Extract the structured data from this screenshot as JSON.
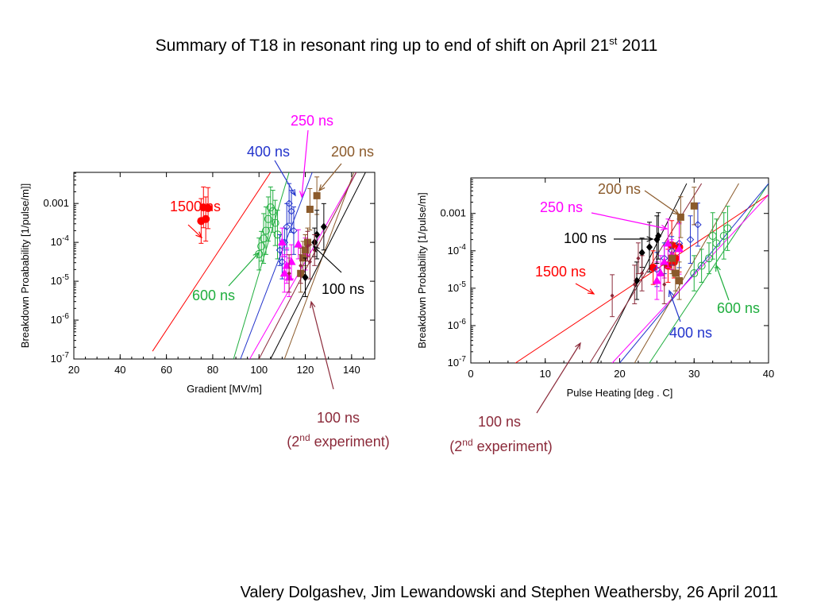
{
  "title": {
    "main": "Summary of T18 in resonant ring up to end of shift on April 21",
    "sup": "st",
    "year": " 2011"
  },
  "footer": "Valery Dolgashev,  Jim Lewandowski and Stephen Weathersby, 26 April 2011",
  "colors": {
    "1500 ns": "#ff0000",
    "600 ns": "#1fae3e",
    "400 ns": "#2233cc",
    "250 ns": "#ff00ff",
    "200 ns": "#8b5a2b",
    "100 ns": "#000000",
    "100 ns (2nd)": "#8b2a3a"
  },
  "chart_data": [
    {
      "type": "scatter",
      "xlabel": "Gradient   [MV/m]",
      "ylabel": "Breakdown Proabability [1/pulse/m]]",
      "xlim": [
        20,
        150
      ],
      "ylim": [
        -7,
        -2.2
      ],
      "y_scale": "log",
      "xticks": [
        20,
        40,
        60,
        80,
        100,
        120,
        140
      ],
      "yticks": [
        {
          "v": -3,
          "base": "0.001",
          "exp": ""
        },
        {
          "v": -4,
          "base": "10",
          "exp": "-4"
        },
        {
          "v": -5,
          "base": "10",
          "exp": "-5"
        },
        {
          "v": -6,
          "base": "10",
          "exp": "-6"
        },
        {
          "v": -7,
          "base": "10",
          "exp": "-7"
        }
      ],
      "series": [
        {
          "name": "1500 ns",
          "marker": "circle",
          "points": [
            [
              75,
              -3.45
            ],
            [
              77,
              -3.4
            ],
            [
              76,
              -3.1
            ],
            [
              78,
              -3.12
            ]
          ],
          "fit": [
            [
              54,
              -6.8
            ],
            [
              105,
              -2.2
            ]
          ]
        },
        {
          "name": "600 ns",
          "marker": "open-circle",
          "points": [
            [
              100,
              -4.3
            ],
            [
              101,
              -4.1
            ],
            [
              102,
              -3.9
            ],
            [
              103,
              -3.7
            ],
            [
              104,
              -3.4
            ],
            [
              105,
              -3.1
            ],
            [
              106,
              -3.2
            ],
            [
              107,
              -3.5
            ],
            [
              108,
              -3.8
            ]
          ],
          "fit": [
            [
              89,
              -7
            ],
            [
              113,
              -2.2
            ]
          ]
        },
        {
          "name": "400 ns",
          "marker": "open-diamond",
          "points": [
            [
              109,
              -4.2
            ],
            [
              110,
              -4.5
            ],
            [
              111,
              -4.0
            ],
            [
              112,
              -3.6
            ],
            [
              113,
              -3.0
            ],
            [
              114,
              -3.2
            ],
            [
              115,
              -3.7
            ]
          ],
          "fit": [
            [
              92,
              -7
            ],
            [
              123,
              -2.2
            ]
          ]
        },
        {
          "name": "250 ns",
          "marker": "triangle",
          "points": [
            [
              110,
              -4.0
            ],
            [
              111,
              -4.8
            ],
            [
              112,
              -4.6
            ],
            [
              113,
              -4.9
            ],
            [
              114,
              -4.5
            ],
            [
              117,
              -4.05
            ],
            [
              120,
              -4.3
            ]
          ],
          "fit": [
            [
              96,
              -7
            ],
            [
              142,
              -2.2
            ]
          ]
        },
        {
          "name": "200 ns",
          "marker": "square",
          "points": [
            [
              118,
              -4.8
            ],
            [
              119,
              -4.4
            ],
            [
              120,
              -4.2
            ],
            [
              121,
              -4.0
            ],
            [
              122,
              -3.15
            ],
            [
              125,
              -2.8
            ]
          ],
          "fit": [
            [
              111,
              -7
            ],
            [
              141,
              -2.2
            ]
          ]
        },
        {
          "name": "100 ns",
          "marker": "diamond",
          "points": [
            [
              120,
              -4.9
            ],
            [
              124,
              -4.0
            ],
            [
              125,
              -3.8
            ],
            [
              128,
              -3.6
            ]
          ],
          "fit": [
            [
              105,
              -7
            ],
            [
              146,
              -2.2
            ]
          ]
        },
        {
          "name": "100 ns (2nd experiment)",
          "marker": "errorbar",
          "points": [
            [
              113,
              -4.8
            ],
            [
              118,
              -4.6
            ],
            [
              121,
              -4.1
            ],
            [
              122,
              -4.5
            ],
            [
              124,
              -4.2
            ]
          ],
          "fit": [
            [
              100,
              -7
            ],
            [
              142,
              -2.2
            ]
          ]
        }
      ],
      "annotations": [
        {
          "text": "250 ns",
          "color": "#ff00ff"
        },
        {
          "text": "400 ns",
          "color": "#2233cc"
        },
        {
          "text": "200 ns",
          "color": "#8b5a2b"
        },
        {
          "text": "1500 ns",
          "color": "#ff0000"
        },
        {
          "text": "600 ns",
          "color": "#1fae3e"
        },
        {
          "text": "100 ns",
          "color": "#000000"
        },
        {
          "text": "100 ns",
          "color": "#8b2a3a"
        },
        {
          "text": "(2",
          "sup": "nd",
          "tail": " experiment)",
          "color": "#8b2a3a"
        }
      ]
    },
    {
      "type": "scatter",
      "xlabel": "Pulse  Heating  [deg . C]",
      "ylabel": "Breakdown Probability [1/pulse/m]",
      "xlim": [
        0,
        40
      ],
      "ylim": [
        -7,
        -2.05
      ],
      "y_scale": "log",
      "xticks": [
        0,
        10,
        20,
        30,
        40
      ],
      "yticks": [
        {
          "v": -3,
          "base": "0.001",
          "exp": ""
        },
        {
          "v": -4,
          "base": "10",
          "exp": "-4"
        },
        {
          "v": -5,
          "base": "10",
          "exp": "-5"
        },
        {
          "v": -6,
          "base": "10",
          "exp": "-6"
        },
        {
          "v": -7,
          "base": "10",
          "exp": "-7"
        }
      ],
      "series": [
        {
          "name": "1500 ns",
          "marker": "circle",
          "points": [
            [
              24.5,
              -4.45
            ],
            [
              26.5,
              -4.4
            ],
            [
              27,
              -3.85
            ],
            [
              27.5,
              -4.2
            ],
            [
              28,
              -3.9
            ],
            [
              27.3,
              -4.3
            ]
          ],
          "fit": [
            [
              6,
              -7
            ],
            [
              40,
              -2.5
            ]
          ]
        },
        {
          "name": "600 ns",
          "marker": "open-circle",
          "points": [
            [
              30,
              -4.6
            ],
            [
              31,
              -4.4
            ],
            [
              32,
              -4.2
            ],
            [
              33,
              -3.8
            ],
            [
              34,
              -3.6
            ],
            [
              34.5,
              -3.4
            ],
            [
              32.5,
              -3.6
            ]
          ],
          "fit": [
            [
              24,
              -7
            ],
            [
              40,
              -2.2
            ]
          ]
        },
        {
          "name": "400 ns",
          "marker": "open-diamond",
          "points": [
            [
              25,
              -4.5
            ],
            [
              26,
              -4.2
            ],
            [
              27,
              -4.0
            ],
            [
              28,
              -3.8
            ],
            [
              29.5,
              -3.7
            ],
            [
              30.5,
              -3.3
            ]
          ],
          "fit": [
            [
              20,
              -7
            ],
            [
              40,
              -2.2
            ]
          ]
        },
        {
          "name": "250 ns",
          "marker": "triangle",
          "points": [
            [
              25,
              -4.8
            ],
            [
              25.5,
              -4.6
            ],
            [
              26,
              -4.3
            ],
            [
              27,
              -4.1
            ],
            [
              28,
              -3.95
            ],
            [
              26.5,
              -3.8
            ]
          ],
          "fit": [
            [
              19,
              -7
            ],
            [
              40,
              -2.5
            ]
          ]
        },
        {
          "name": "200 ns",
          "marker": "square",
          "points": [
            [
              27,
              -4.2
            ],
            [
              27.5,
              -4.6
            ],
            [
              28,
              -4.8
            ],
            [
              28.2,
              -3.1
            ],
            [
              30,
              -2.8
            ]
          ],
          "fit": [
            [
              22,
              -7
            ],
            [
              36,
              -2.2
            ]
          ]
        },
        {
          "name": "100 ns",
          "marker": "diamond",
          "points": [
            [
              22.3,
              -4.8
            ],
            [
              23,
              -4.05
            ],
            [
              24,
              -3.9
            ],
            [
              25,
              -3.7
            ],
            [
              25.2,
              -3.6
            ]
          ],
          "fit": [
            [
              17,
              -7
            ],
            [
              29,
              -2.2
            ]
          ]
        },
        {
          "name": "100 ns (2nd experiment)",
          "marker": "errorbar",
          "points": [
            [
              19,
              -5.2
            ],
            [
              22,
              -4.9
            ],
            [
              22.5,
              -4.2
            ],
            [
              23,
              -4.6
            ],
            [
              26,
              -4.9
            ]
          ],
          "fit": [
            [
              16,
              -7
            ],
            [
              31,
              -2.2
            ]
          ]
        }
      ],
      "annotations": [
        {
          "text": "200 ns",
          "color": "#8b5a2b"
        },
        {
          "text": "250 ns",
          "color": "#ff00ff"
        },
        {
          "text": "100 ns",
          "color": "#000000"
        },
        {
          "text": "1500 ns",
          "color": "#ff0000"
        },
        {
          "text": "600 ns",
          "color": "#1fae3e"
        },
        {
          "text": "400 ns",
          "color": "#2233cc"
        },
        {
          "text": "100 ns",
          "color": "#8b2a3a"
        },
        {
          "text": "(2",
          "sup": "nd",
          "tail": " experiment)",
          "color": "#8b2a3a"
        }
      ]
    }
  ]
}
